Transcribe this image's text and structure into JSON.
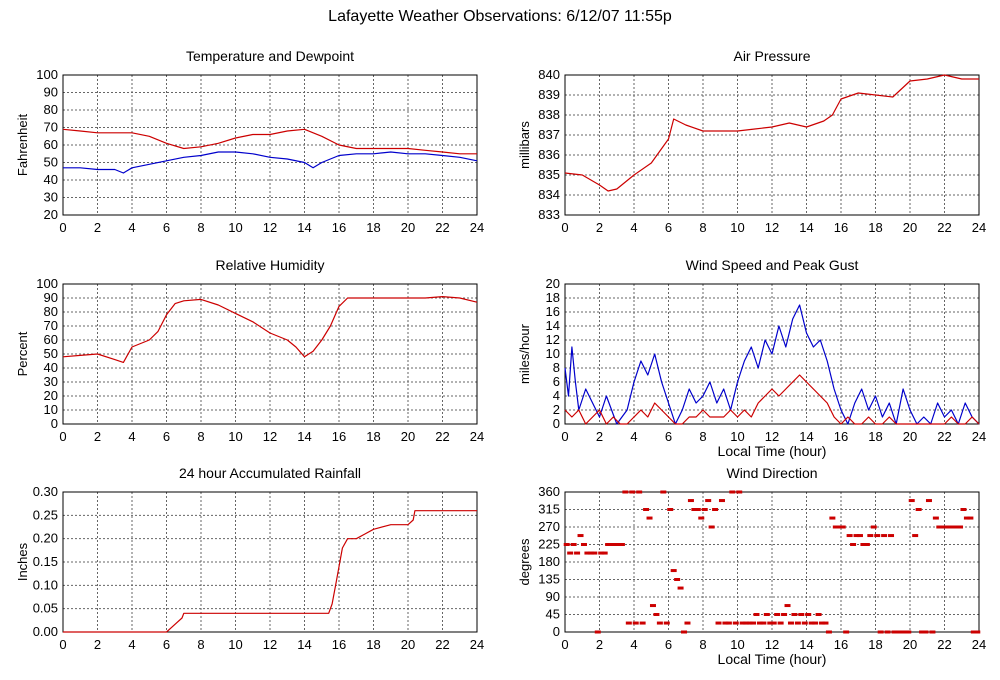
{
  "page": {
    "title": "Lafayette Weather Observations: 6/12/07 11:55p"
  },
  "chart_data": [
    {
      "id": "temperature",
      "type": "line",
      "title": "Temperature and Dewpoint",
      "xlabel": "",
      "ylabel": "Fahrenheit",
      "xlim": [
        0,
        24
      ],
      "ylim": [
        20,
        100
      ],
      "xticks": [
        0,
        2,
        4,
        6,
        8,
        10,
        12,
        14,
        16,
        18,
        20,
        22,
        24
      ],
      "yticks": [
        20,
        30,
        40,
        50,
        60,
        70,
        80,
        90,
        100
      ],
      "grid": true,
      "series": [
        {
          "color": "#cc0000",
          "x": [
            0,
            1,
            2,
            3,
            4,
            5,
            6,
            7,
            8,
            9,
            10,
            11,
            12,
            13,
            14,
            15,
            16,
            17,
            18,
            19,
            20,
            21,
            22,
            23,
            24
          ],
          "y": [
            69,
            68,
            67,
            67,
            67,
            65,
            61,
            58,
            59,
            61,
            64,
            66,
            66,
            68,
            69,
            65,
            60,
            58,
            58,
            58,
            58,
            57,
            56,
            55,
            55
          ]
        },
        {
          "color": "#0000cc",
          "x": [
            0,
            1,
            2,
            3,
            3.5,
            4,
            5,
            6,
            7,
            8,
            9,
            10,
            11,
            12,
            13,
            14,
            14.5,
            15,
            16,
            17,
            18,
            19,
            20,
            21,
            22,
            23,
            24
          ],
          "y": [
            47,
            47,
            46,
            46,
            44,
            47,
            49,
            51,
            53,
            54,
            56,
            56,
            55,
            53,
            52,
            50,
            47,
            50,
            54,
            55,
            55,
            56,
            55,
            55,
            54,
            53,
            51
          ]
        }
      ]
    },
    {
      "id": "pressure",
      "type": "line",
      "title": "Air Pressure",
      "xlabel": "",
      "ylabel": "millibars",
      "xlim": [
        0,
        24
      ],
      "ylim": [
        833,
        840
      ],
      "xticks": [
        0,
        2,
        4,
        6,
        8,
        10,
        12,
        14,
        16,
        18,
        20,
        22,
        24
      ],
      "yticks": [
        833,
        834,
        835,
        836,
        837,
        838,
        839,
        840
      ],
      "grid": true,
      "series": [
        {
          "color": "#cc0000",
          "x": [
            0,
            1,
            2,
            2.5,
            3,
            4,
            5,
            5.5,
            6,
            6.3,
            7,
            8,
            9,
            10,
            11,
            12,
            13,
            14,
            15,
            15.5,
            16,
            17,
            18,
            19,
            20,
            21,
            22,
            23,
            24
          ],
          "y": [
            835.1,
            835.0,
            834.5,
            834.2,
            834.3,
            835.0,
            835.6,
            836.2,
            836.8,
            837.8,
            837.5,
            837.2,
            837.2,
            837.2,
            837.3,
            837.4,
            837.6,
            837.4,
            837.7,
            838.0,
            838.8,
            839.1,
            839.0,
            838.9,
            839.7,
            839.8,
            840.0,
            839.8,
            839.8
          ]
        }
      ]
    },
    {
      "id": "humidity",
      "type": "line",
      "title": "Relative Humidity",
      "xlabel": "",
      "ylabel": "Percent",
      "xlim": [
        0,
        24
      ],
      "ylim": [
        0,
        100
      ],
      "xticks": [
        0,
        2,
        4,
        6,
        8,
        10,
        12,
        14,
        16,
        18,
        20,
        22,
        24
      ],
      "yticks": [
        0,
        10,
        20,
        30,
        40,
        50,
        60,
        70,
        80,
        90,
        100
      ],
      "grid": true,
      "series": [
        {
          "color": "#cc0000",
          "x": [
            0,
            1,
            2,
            3,
            3.5,
            4,
            5,
            5.5,
            6,
            6.5,
            7,
            8,
            9,
            10,
            11,
            12,
            13,
            13.5,
            14,
            14.5,
            15,
            15.5,
            16,
            16.5,
            17,
            18,
            19,
            20,
            21,
            22,
            23,
            24
          ],
          "y": [
            48,
            49,
            50,
            46,
            44,
            55,
            60,
            66,
            78,
            86,
            88,
            89,
            85,
            79,
            73,
            65,
            60,
            55,
            48,
            52,
            60,
            70,
            84,
            90,
            90,
            90,
            90,
            90,
            90,
            91,
            90,
            87
          ]
        }
      ]
    },
    {
      "id": "wind-speed",
      "type": "line",
      "title": "Wind Speed and Peak Gust",
      "xlabel": "Local Time (hour)",
      "ylabel": "miles/hour",
      "xlim": [
        0,
        24
      ],
      "ylim": [
        0,
        20
      ],
      "xticks": [
        0,
        2,
        4,
        6,
        8,
        10,
        12,
        14,
        16,
        18,
        20,
        22,
        24
      ],
      "yticks": [
        0,
        2,
        4,
        6,
        8,
        10,
        12,
        14,
        16,
        18,
        20
      ],
      "grid": true,
      "series": [
        {
          "color": "#0000cc",
          "x": [
            0,
            0.2,
            0.4,
            0.6,
            0.8,
            1.2,
            1.6,
            2,
            2.4,
            3,
            3.6,
            4,
            4.4,
            4.8,
            5.2,
            5.6,
            6,
            6.4,
            6.8,
            7.2,
            7.6,
            8,
            8.4,
            8.8,
            9.2,
            9.6,
            10,
            10.4,
            10.8,
            11.2,
            11.6,
            12,
            12.4,
            12.8,
            13.2,
            13.6,
            14,
            14.4,
            14.8,
            15.2,
            15.6,
            16,
            16.4,
            16.8,
            17.2,
            17.6,
            18,
            18.4,
            18.8,
            19.2,
            19.6,
            20,
            20.4,
            20.8,
            21.2,
            21.6,
            22,
            22.4,
            22.8,
            23.2,
            23.6,
            24
          ],
          "y": [
            8,
            4,
            11,
            6,
            2,
            5,
            3,
            1,
            4,
            0,
            2,
            6,
            9,
            7,
            10,
            6,
            3,
            0,
            2,
            5,
            3,
            4,
            6,
            3,
            5,
            2,
            6,
            9,
            11,
            8,
            12,
            10,
            14,
            11,
            15,
            17,
            13,
            11,
            12,
            9,
            5,
            2,
            0,
            3,
            5,
            2,
            4,
            1,
            3,
            0,
            5,
            2,
            0,
            1,
            0,
            3,
            1,
            2,
            0,
            3,
            1,
            0
          ]
        },
        {
          "color": "#cc0000",
          "x": [
            0,
            0.4,
            0.8,
            1.2,
            1.6,
            2,
            2.4,
            2.8,
            3.2,
            3.6,
            4,
            4.4,
            4.8,
            5.2,
            5.6,
            6,
            6.4,
            6.8,
            7.2,
            7.6,
            8,
            8.4,
            8.8,
            9.2,
            9.6,
            10,
            10.4,
            10.8,
            11.2,
            11.6,
            12,
            12.4,
            12.8,
            13.2,
            13.6,
            14,
            14.4,
            14.8,
            15.2,
            15.6,
            16,
            16.4,
            16.8,
            17.2,
            17.6,
            18,
            18.4,
            18.8,
            19.2,
            19.6,
            20,
            20.4,
            20.8,
            21.2,
            21.6,
            22,
            22.4,
            22.8,
            23.2,
            23.6,
            24
          ],
          "y": [
            2,
            1,
            2,
            0,
            1,
            2,
            0,
            1,
            0,
            0,
            1,
            2,
            1,
            3,
            2,
            1,
            0,
            0,
            1,
            1,
            2,
            1,
            1,
            1,
            2,
            1,
            2,
            1,
            3,
            4,
            5,
            4,
            5,
            6,
            7,
            6,
            5,
            4,
            3,
            1,
            0,
            1,
            0,
            0,
            1,
            0,
            0,
            1,
            0,
            0,
            0,
            0,
            0,
            0,
            0,
            0,
            1,
            0,
            0,
            1,
            0
          ]
        }
      ]
    },
    {
      "id": "rainfall",
      "type": "line",
      "title": "24 hour Accumulated Rainfall",
      "xlabel": "",
      "ylabel": "Inches",
      "xlim": [
        0,
        24
      ],
      "ylim": [
        0,
        0.3
      ],
      "xticks": [
        0,
        2,
        4,
        6,
        8,
        10,
        12,
        14,
        16,
        18,
        20,
        22,
        24
      ],
      "yticks": [
        "0.00",
        "0.05",
        "0.10",
        "0.15",
        "0.20",
        "0.25",
        "0.30"
      ],
      "grid": true,
      "series": [
        {
          "color": "#cc0000",
          "x": [
            0,
            6.0,
            6.3,
            6.6,
            6.9,
            7.0,
            15.4,
            15.6,
            15.8,
            16.0,
            16.2,
            16.5,
            17.0,
            17.5,
            18.0,
            19.0,
            20.0,
            20.3,
            20.4,
            21.0,
            24.0
          ],
          "y": [
            0,
            0,
            0.01,
            0.02,
            0.03,
            0.04,
            0.04,
            0.06,
            0.1,
            0.14,
            0.18,
            0.2,
            0.2,
            0.21,
            0.22,
            0.23,
            0.23,
            0.24,
            0.26,
            0.26,
            0.26
          ]
        }
      ]
    },
    {
      "id": "wind-direction",
      "type": "scatter",
      "title": "Wind Direction",
      "xlabel": "Local Time (hour)",
      "ylabel": "degrees",
      "xlim": [
        0,
        24
      ],
      "ylim": [
        0,
        360
      ],
      "xticks": [
        0,
        2,
        4,
        6,
        8,
        10,
        12,
        14,
        16,
        18,
        20,
        22,
        24
      ],
      "yticks": [
        0,
        45,
        90,
        135,
        180,
        225,
        270,
        315,
        360
      ],
      "grid": true,
      "series": [
        {
          "color": "#cc0000",
          "x": [
            0.1,
            0.3,
            0.5,
            0.7,
            0.9,
            1.1,
            1.3,
            1.5,
            1.7,
            1.9,
            2.1,
            2.3,
            2.5,
            2.7,
            2.9,
            3.1,
            3.3,
            3.5,
            3.7,
            3.9,
            4.1,
            4.3,
            4.5,
            4.7,
            4.9,
            5.1,
            5.3,
            5.5,
            5.7,
            5.9,
            6.1,
            6.3,
            6.5,
            6.7,
            6.9,
            7.1,
            7.3,
            7.5,
            7.7,
            7.9,
            8.1,
            8.3,
            8.5,
            8.7,
            8.9,
            9.1,
            9.3,
            9.5,
            9.7,
            9.9,
            10.1,
            10.3,
            10.5,
            10.7,
            10.9,
            11.1,
            11.3,
            11.5,
            11.7,
            11.9,
            12.1,
            12.3,
            12.5,
            12.7,
            12.9,
            13.1,
            13.3,
            13.5,
            13.7,
            13.9,
            14.1,
            14.3,
            14.5,
            14.7,
            14.9,
            15.1,
            15.3,
            15.5,
            15.7,
            15.9,
            16.1,
            16.3,
            16.5,
            16.7,
            16.9,
            17.1,
            17.3,
            17.5,
            17.7,
            17.9,
            18.1,
            18.3,
            18.5,
            18.7,
            18.9,
            19.1,
            19.3,
            19.5,
            19.7,
            19.9,
            20.1,
            20.3,
            20.5,
            20.7,
            20.9,
            21.1,
            21.3,
            21.5,
            21.7,
            21.9,
            22.1,
            22.3,
            22.5,
            22.7,
            22.9,
            23.1,
            23.3,
            23.5,
            23.7,
            23.9
          ],
          "y": [
            225,
            203,
            225,
            203,
            248,
            225,
            203,
            203,
            203,
            0,
            203,
            203,
            225,
            225,
            225,
            225,
            225,
            360,
            23,
            360,
            23,
            360,
            23,
            315,
            293,
            68,
            45,
            23,
            360,
            23,
            315,
            158,
            135,
            113,
            0,
            23,
            338,
            315,
            315,
            293,
            315,
            338,
            270,
            315,
            23,
            338,
            23,
            23,
            360,
            23,
            360,
            23,
            23,
            23,
            23,
            45,
            23,
            23,
            45,
            23,
            23,
            45,
            23,
            45,
            68,
            23,
            45,
            23,
            45,
            23,
            45,
            23,
            23,
            45,
            23,
            23,
            0,
            293,
            270,
            270,
            270,
            0,
            248,
            225,
            248,
            248,
            225,
            225,
            248,
            270,
            248,
            0,
            248,
            0,
            248,
            0,
            0,
            0,
            0,
            0,
            338,
            248,
            315,
            0,
            0,
            338,
            0,
            293,
            270,
            270,
            270,
            270,
            270,
            270,
            270,
            315,
            293,
            293,
            0,
            0
          ]
        }
      ]
    }
  ]
}
